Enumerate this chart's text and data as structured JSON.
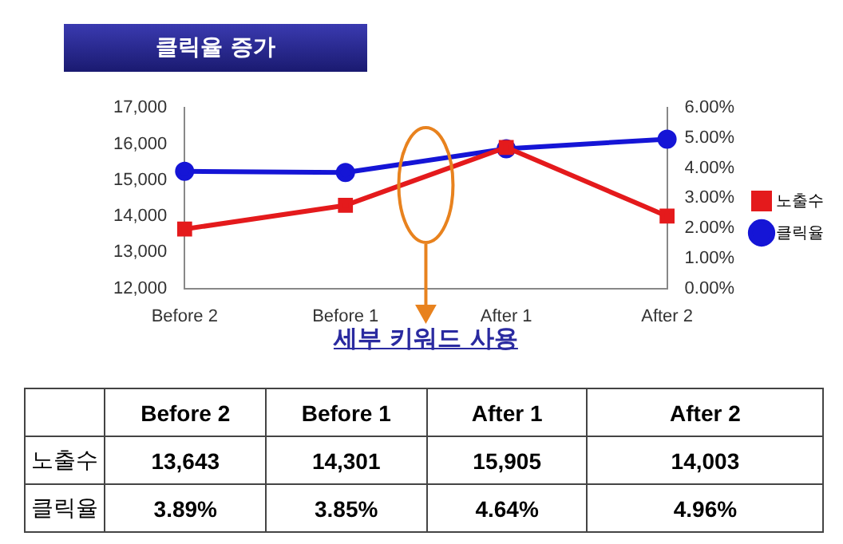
{
  "chart_data": {
    "type": "line",
    "title": "클릭율 증가",
    "categories": [
      "Before 2",
      "Before 1",
      "After 1",
      "After 2"
    ],
    "series": [
      {
        "name": "노출수",
        "color": "#e41a1c",
        "values": [
          13643,
          14301,
          15905,
          14003
        ],
        "marker": "square",
        "value_labels": [
          "13,643",
          "14,301",
          "15,905",
          "14,003"
        ]
      },
      {
        "name": "클릭율",
        "color": "#1515d6",
        "values": [
          3.89,
          3.85,
          4.64,
          4.96
        ],
        "axis": "y2",
        "marker": "circle",
        "value_labels": [
          "3.89%",
          "3.85%",
          "4.64%",
          "4.96%"
        ]
      }
    ],
    "ylim": [
      12000,
      17000
    ],
    "yticks": [
      {
        "value": 12000,
        "label": "12,000"
      },
      {
        "value": 13000,
        "label": "13,000"
      },
      {
        "value": 14000,
        "label": "14,000"
      },
      {
        "value": 15000,
        "label": "15,000"
      },
      {
        "value": 16000,
        "label": "16,000"
      },
      {
        "value": 17000,
        "label": "17,000"
      }
    ],
    "y2lim": [
      0,
      6
    ],
    "y2ticks": [
      {
        "value": 0,
        "label": "0.00%"
      },
      {
        "value": 1,
        "label": "1.00%"
      },
      {
        "value": 2,
        "label": "2.00%"
      },
      {
        "value": 3,
        "label": "3.00%"
      },
      {
        "value": 4,
        "label": "4.00%"
      },
      {
        "value": 5,
        "label": "5.00%"
      },
      {
        "value": 6,
        "label": "6.00%"
      }
    ],
    "annotations": [
      "세부 키워드 사용"
    ],
    "legend": "right",
    "grid": false,
    "line_style": "solid"
  }
}
